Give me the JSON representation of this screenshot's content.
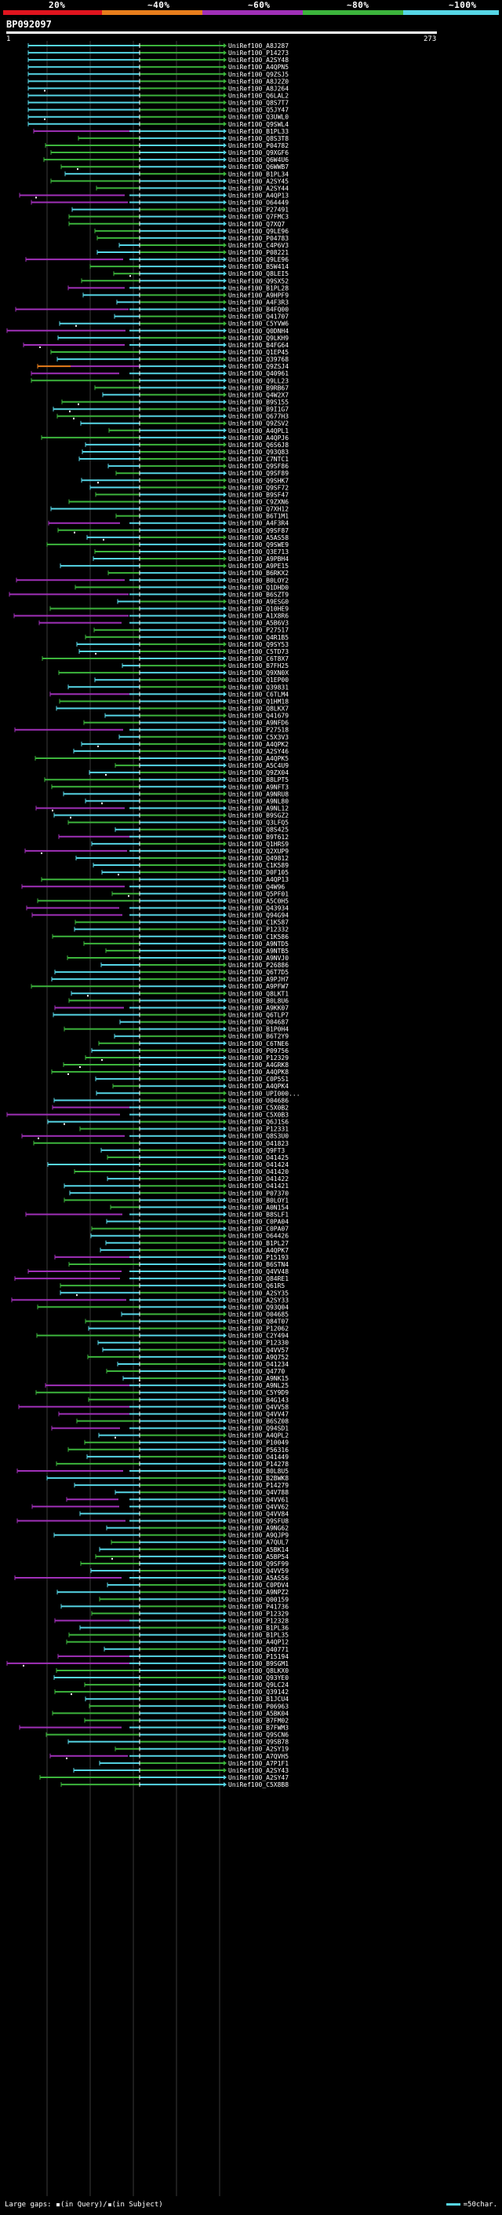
{
  "colors": {
    "background": "#000000",
    "bin_20": "#e0141e",
    "bin_40": "#e87e1c",
    "bin_60": "#a030b8",
    "bin_80": "#3cb43c",
    "bin_100": "#56d6e6",
    "gridline": "#3a3a3a",
    "label": "#ffffff"
  },
  "legend": {
    "bins": [
      {
        "label": "20%",
        "color": "#e0141e"
      },
      {
        "label": "~40%",
        "color": "#e87e1c"
      },
      {
        "label": "~60%",
        "color": "#a030b8"
      },
      {
        "label": "~80%",
        "color": "#3cb43c"
      },
      {
        "label": "~100%",
        "color": "#56d6e6"
      }
    ]
  },
  "query": {
    "id": "BP092097",
    "start": "1",
    "end": "273"
  },
  "footer": {
    "gaps_prefix": "Large gaps: ",
    "in_query": "(in Query)/",
    "in_subject": "(in Subject)",
    "scale_text": "=50char."
  },
  "hits": [
    "UniRef100_A8J287",
    "UniRef100_P14273",
    "UniRef100_A2SY48",
    "UniRef100_A4QPN5",
    "UniRef100_Q9ZSJ5",
    "UniRef100_A8J2Z0",
    "UniRef100_A8J264",
    "UniRef100_Q6LAL2",
    "UniRef100_Q8S7T7",
    "UniRef100_Q5JY47",
    "UniRef100_Q3UWL0",
    "UniRef100_Q9SWL4",
    "UniRef100_B1PL33",
    "UniRef100_Q8S3T8",
    "UniRef100_P04782",
    "UniRef100_Q9XGF6",
    "UniRef100_Q6W4U6",
    "UniRef100_Q6WWB7",
    "UniRef100_B1PL34",
    "UniRef100_A2SY45",
    "UniRef100_A2SY44",
    "UniRef100_A4QP13",
    "UniRef100_O64449",
    "UniRef100_P27491",
    "UniRef100_Q7FMC3",
    "UniRef100_Q7XQ7",
    "UniRef100_Q9LE96",
    "UniRef100_P04783",
    "UniRef100_C4P6V3",
    "UniRef100_P08221",
    "UniRef100_Q9LE96",
    "UniRef100_B5W414",
    "UniRef100_Q8LEI5",
    "UniRef100_Q9SX52",
    "UniRef100_B1PL28",
    "UniRef100_A9HPF9",
    "UniRef100_A4F3R3",
    "UniRef100_B4FQ00",
    "UniRef100_Q41707",
    "UniRef100_C5YVW6",
    "UniRef100_Q0DNH4",
    "UniRef100_Q9LKH9",
    "UniRef100_B4FG64",
    "UniRef100_Q1EP45",
    "UniRef100_Q39768",
    "UniRef100_Q9ZSJ4",
    "UniRef100_Q40961",
    "UniRef100_Q9LL23",
    "UniRef100_B9RB67",
    "UniRef100_Q4W2X7",
    "UniRef100_B9S155",
    "UniRef100_B9I1G7",
    "UniRef100_Q677H3",
    "UniRef100_Q9ZSV2",
    "UniRef100_A4QPL1",
    "UniRef100_A4QPJ6",
    "UniRef100_Q6S6J8",
    "UniRef100_Q93Q83",
    "UniRef100_C7NTC1",
    "UniRef100_Q9SF86",
    "UniRef100_Q9SF89",
    "UniRef100_Q9SHK7",
    "UniRef100_Q9SF72",
    "UniRef100_B9SF47",
    "UniRef100_C9ZXN6",
    "UniRef100_Q7XH12",
    "UniRef100_B6T1M1",
    "UniRef100_A4F3R4",
    "UniRef100_Q9SF87",
    "UniRef100_A5AS58",
    "UniRef100_Q9SWE9",
    "UniRef100_Q3E713",
    "UniRef100_A9PBH4",
    "UniRef100_A9PE15",
    "UniRef100_B6RKX2",
    "UniRef100_B0LOY2",
    "UniRef100_Q1DHD0",
    "UniRef100_B6SZT9",
    "UniRef100_A9ESG0",
    "UniRef100_Q10HE9",
    "UniRef100_A1X8R6",
    "UniRef100_A5B6V3",
    "UniRef100_P27517",
    "UniRef100_Q4R1B5",
    "UniRef100_Q9SY53",
    "UniRef100_C5TD73",
    "UniRef100_C6T8X7",
    "UniRef100_B7FH25",
    "UniRef100_Q9XN0X",
    "UniRef100_Q1EP00",
    "UniRef100_Q39831",
    "UniRef100_C6TLM4",
    "UniRef100_Q1HM18",
    "UniRef100_Q8LKX7",
    "UniRef100_Q41679",
    "UniRef100_A9NFD6",
    "UniRef100_P27518",
    "UniRef100_C5X3V3",
    "UniRef100_A4QPK2",
    "UniRef100_A2SY46",
    "UniRef100_A4QPK5",
    "UniRef100_A5C4U9",
    "UniRef100_Q9ZX04",
    "UniRef100_B8LPT5",
    "UniRef100_A9NFT3",
    "UniRef100_A9NRU8",
    "UniRef100_A9NL80",
    "UniRef100_A9NL12",
    "UniRef100_B9SGZ2",
    "UniRef100_Q3LFQ5",
    "UniRef100_Q8S425",
    "UniRef100_B9T612",
    "UniRef100_Q1HRS9",
    "UniRef100_Q2XUP9",
    "UniRef100_Q49812",
    "UniRef100_C1K589",
    "UniRef100_D0F105",
    "UniRef100_A4QP13",
    "UniRef100_Q4W96",
    "UniRef100_Q5PF01",
    "UniRef100_A5C0H5",
    "UniRef100_Q43934",
    "UniRef100_Q94G94",
    "UniRef100_C1K587",
    "UniRef100_P12332",
    "UniRef100_C1K586",
    "UniRef100_A9NTD5",
    "UniRef100_A9NTB5",
    "UniRef100_A9NVJ0",
    "UniRef100_P26886",
    "UniRef100_Q6T7D5",
    "UniRef100_A9PJH7",
    "UniRef100_A9PFW7",
    "UniRef100_Q8LKT1",
    "UniRef100_B0L8U6",
    "UniRef100_A9KK07",
    "UniRef100_Q6TLP7",
    "UniRef100_O04687",
    "UniRef100_B1P0H4",
    "UniRef100_B6T2Y9",
    "UniRef100_C6TNE6",
    "UniRef100_P09756",
    "UniRef100_P12329",
    "UniRef100_A4GRK8",
    "UniRef100_A4QPK8",
    "UniRef100_C0P5S1",
    "UniRef100_A4QPK4",
    "UniRef100_UPI000...",
    "UniRef100_O04686",
    "UniRef100_C5X0B2",
    "UniRef100_C5X0B3",
    "UniRef100_Q6J1S6",
    "UniRef100_P12331",
    "UniRef100_Q8S3U0",
    "UniRef100_O41823",
    "UniRef100_Q9FT3",
    "UniRef100_O41425",
    "UniRef100_O41424",
    "UniRef100_O41420",
    "UniRef100_O41422",
    "UniRef100_O41421",
    "UniRef100_P07370",
    "UniRef100_B0LOY1",
    "UniRef100_A0N154",
    "UniRef100_B8SLF1",
    "UniRef100_C0PA04",
    "UniRef100_C0PA07",
    "UniRef100_O64426",
    "UniRef100_B1PL27",
    "UniRef100_A4QPK7",
    "UniRef100_P15193",
    "UniRef100_B6STN4",
    "UniRef100_Q4VV48",
    "UniRef100_Q84RE1",
    "UniRef100_Q61R5",
    "UniRef100_A2SY35",
    "UniRef100_A2SY33",
    "UniRef100_Q93Q04",
    "UniRef100_O04685",
    "UniRef100_Q84T07",
    "UniRef100_P12062",
    "UniRef100_C2Y494",
    "UniRef100_P12330",
    "UniRef100_Q4VV57",
    "UniRef100_A9Q752",
    "UniRef100_O41234",
    "UniRef100_Q4770",
    "UniRef100_A9NK15",
    "UniRef100_A9NL25",
    "UniRef100_C5Y9D9",
    "UniRef100_B4G143",
    "UniRef100_Q4VV58",
    "UniRef100_Q4VV47",
    "UniRef100_B6SZ08",
    "UniRef100_Q94SD1",
    "UniRef100_A4QPL2",
    "UniRef100_P10049",
    "UniRef100_P56316",
    "UniRef100_O41449",
    "UniRef100_P14278",
    "UniRef100_B0L8U5",
    "UniRef100_B2BWK8",
    "UniRef100_P14279",
    "UniRef100_Q4V788",
    "UniRef100_Q4VV61",
    "UniRef100_Q4VV62",
    "UniRef100_Q4VV84",
    "UniRef100_Q9SFU8",
    "UniRef100_A9NG62",
    "UniRef100_A9QJP9",
    "UniRef100_A7QUL7",
    "UniRef100_A5BK14",
    "UniRef100_A5BP54",
    "UniRef100_Q9SF99",
    "UniRef100_Q4VV59",
    "UniRef100_A5AS56",
    "UniRef100_C0PDV4",
    "UniRef100_A9NPZ2",
    "UniRef100_Q00159",
    "UniRef100_P41736",
    "UniRef100_P12329",
    "UniRef100_P12328",
    "UniRef100_B1PL36",
    "UniRef100_B1PL35",
    "UniRef100_A4QP12",
    "UniRef100_Q40771",
    "UniRef100_P15194",
    "UniRef100_B9SGM1",
    "UniRef100_Q8LKX0",
    "UniRef100_Q93YE0",
    "UniRef100_Q9LC24",
    "UniRef100_Q39142",
    "UniRef100_B1JCU4",
    "UniRef100_P06963",
    "UniRef100_A5BK04",
    "UniRef100_B7FM02",
    "UniRef100_B7FWM3",
    "UniRef100_Q9SCN6",
    "UniRef100_Q9SB78",
    "UniRef100_A2SY19",
    "UniRef100_A7QVH5",
    "UniRef100_A7P1F1",
    "UniRef100_A2SY43",
    "UniRef100_A2SY47",
    "UniRef100_C5X8B8"
  ]
}
